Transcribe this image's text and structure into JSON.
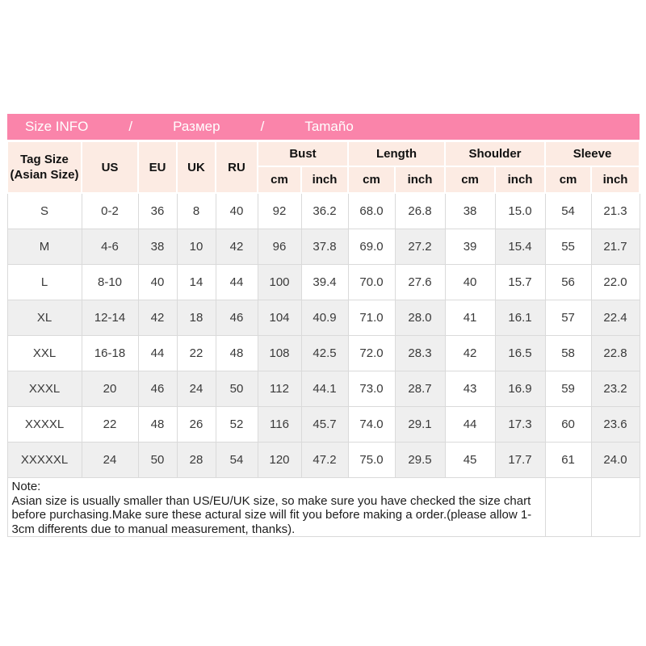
{
  "banner": {
    "segments": [
      "Size INFO",
      "/",
      "Размер",
      "/",
      "Tamaño"
    ]
  },
  "header": {
    "tag_line1": "Tag Size",
    "tag_line2": "(Asian Size)",
    "basic_cols": [
      "US",
      "EU",
      "UK",
      "RU"
    ],
    "groups": [
      "Bust",
      "Length",
      "Shoulder",
      "Sleeve"
    ],
    "unit_cm": "cm",
    "unit_inch": "inch"
  },
  "chart_data": {
    "type": "table",
    "title": "Size INFO / Размер / Tamaño",
    "columns": [
      "Tag Size (Asian Size)",
      "US",
      "EU",
      "UK",
      "RU",
      "Bust cm",
      "Bust inch",
      "Length cm",
      "Length inch",
      "Shoulder cm",
      "Shoulder inch",
      "Sleeve cm",
      "Sleeve inch"
    ],
    "rows": [
      [
        "S",
        "0-2",
        "36",
        "8",
        "40",
        "92",
        "36.2",
        "68.0",
        "26.8",
        "38",
        "15.0",
        "54",
        "21.3"
      ],
      [
        "M",
        "4-6",
        "38",
        "10",
        "42",
        "96",
        "37.8",
        "69.0",
        "27.2",
        "39",
        "15.4",
        "55",
        "21.7"
      ],
      [
        "L",
        "8-10",
        "40",
        "14",
        "44",
        "100",
        "39.4",
        "70.0",
        "27.6",
        "40",
        "15.7",
        "56",
        "22.0"
      ],
      [
        "XL",
        "12-14",
        "42",
        "18",
        "46",
        "104",
        "40.9",
        "71.0",
        "28.0",
        "41",
        "16.1",
        "57",
        "22.4"
      ],
      [
        "XXL",
        "16-18",
        "44",
        "22",
        "48",
        "108",
        "42.5",
        "72.0",
        "28.3",
        "42",
        "16.5",
        "58",
        "22.8"
      ],
      [
        "XXXL",
        "20",
        "46",
        "24",
        "50",
        "112",
        "44.1",
        "73.0",
        "28.7",
        "43",
        "16.9",
        "59",
        "23.2"
      ],
      [
        "XXXXL",
        "22",
        "48",
        "26",
        "52",
        "116",
        "45.7",
        "74.0",
        "29.1",
        "44",
        "17.3",
        "60",
        "23.6"
      ],
      [
        "XXXXXL",
        "24",
        "50",
        "28",
        "54",
        "120",
        "47.2",
        "75.0",
        "29.5",
        "45",
        "17.7",
        "61",
        "24.0"
      ]
    ]
  },
  "note": {
    "title": "Note:",
    "body": "Asian size is usually smaller than US/EU/UK size, so make sure you have checked the size chart before purchasing.Make sure these actural size will fit you before making a order.(please allow 1-3cm differents due to manual measurement, thanks)."
  },
  "colors": {
    "banner_pink": "#fa84aa",
    "header_pink": "#fcebe3",
    "stripe_gray": "#efefef",
    "border_gray": "#dadada"
  }
}
